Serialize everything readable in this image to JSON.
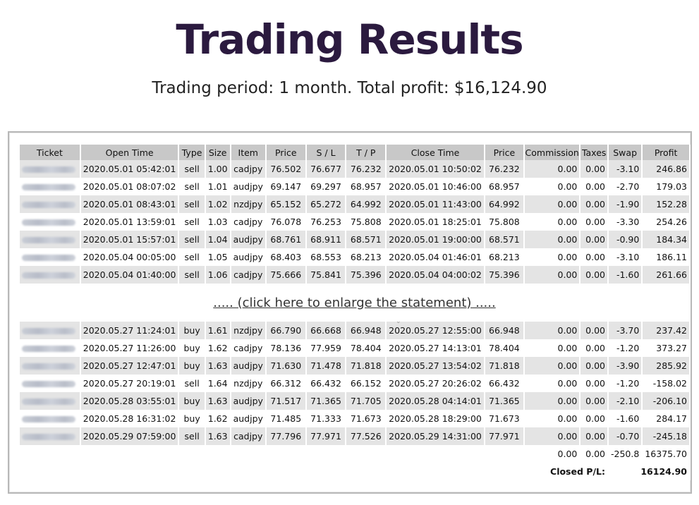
{
  "title": "Trading Results",
  "subtitle": "Trading period: 1 month. Total profit: $16,124.90",
  "statement": {
    "columns": [
      "Ticket",
      "Open Time",
      "Type",
      "Size",
      "Item",
      "Price",
      "S / L",
      "T / P",
      "Close Time",
      "Price",
      "Commission",
      "Taxes",
      "Swap",
      "Profit"
    ],
    "rows_top": [
      [
        "2020.05.01 05:42:01",
        "sell",
        "1.00",
        "cadjpy",
        "76.502",
        "76.677",
        "76.232",
        "2020.05.01 10:50:02",
        "76.232",
        "0.00",
        "0.00",
        "-3.10",
        "246.86"
      ],
      [
        "2020.05.01 08:07:02",
        "sell",
        "1.01",
        "audjpy",
        "69.147",
        "69.297",
        "68.957",
        "2020.05.01 10:46:00",
        "68.957",
        "0.00",
        "0.00",
        "-2.70",
        "179.03"
      ],
      [
        "2020.05.01 08:43:01",
        "sell",
        "1.02",
        "nzdjpy",
        "65.152",
        "65.272",
        "64.992",
        "2020.05.01 11:43:00",
        "64.992",
        "0.00",
        "0.00",
        "-1.90",
        "152.28"
      ],
      [
        "2020.05.01 13:59:01",
        "sell",
        "1.03",
        "cadjpy",
        "76.078",
        "76.253",
        "75.808",
        "2020.05.01 18:25:01",
        "75.808",
        "0.00",
        "0.00",
        "-3.30",
        "254.26"
      ],
      [
        "2020.05.01 15:57:01",
        "sell",
        "1.04",
        "audjpy",
        "68.761",
        "68.911",
        "68.571",
        "2020.05.01 19:00:00",
        "68.571",
        "0.00",
        "0.00",
        "-0.90",
        "184.34"
      ],
      [
        "2020.05.04 00:05:00",
        "sell",
        "1.05",
        "audjpy",
        "68.403",
        "68.553",
        "68.213",
        "2020.05.04 01:46:01",
        "68.213",
        "0.00",
        "0.00",
        "-3.10",
        "186.11"
      ],
      [
        "2020.05.04 01:40:00",
        "sell",
        "1.06",
        "cadjpy",
        "75.666",
        "75.841",
        "75.396",
        "2020.05.04 04:00:02",
        "75.396",
        "0.00",
        "0.00",
        "-1.60",
        "261.66"
      ]
    ],
    "enlarge_link": "..... (click here to enlarge the statement) .....",
    "rows_bottom": [
      [
        "2020.05.27 11:24:01",
        "buy",
        "1.61",
        "nzdjpy",
        "66.790",
        "66.668",
        "66.948",
        "2020.05.27 12:55:00",
        "66.948",
        "0.00",
        "0.00",
        "-3.70",
        "237.42"
      ],
      [
        "2020.05.27 11:26:00",
        "buy",
        "1.62",
        "cadjpy",
        "78.136",
        "77.959",
        "78.404",
        "2020.05.27 14:13:01",
        "78.404",
        "0.00",
        "0.00",
        "-1.20",
        "373.27"
      ],
      [
        "2020.05.27 12:47:01",
        "buy",
        "1.63",
        "audjpy",
        "71.630",
        "71.478",
        "71.818",
        "2020.05.27 13:54:02",
        "71.818",
        "0.00",
        "0.00",
        "-3.90",
        "285.92"
      ],
      [
        "2020.05.27 20:19:01",
        "sell",
        "1.64",
        "nzdjpy",
        "66.312",
        "66.432",
        "66.152",
        "2020.05.27 20:26:02",
        "66.432",
        "0.00",
        "0.00",
        "-1.20",
        "-158.02"
      ],
      [
        "2020.05.28 03:55:01",
        "buy",
        "1.63",
        "audjpy",
        "71.517",
        "71.365",
        "71.705",
        "2020.05.28 04:14:01",
        "71.365",
        "0.00",
        "0.00",
        "-2.10",
        "-206.10"
      ],
      [
        "2020.05.28 16:31:02",
        "buy",
        "1.62",
        "audjpy",
        "71.485",
        "71.333",
        "71.673",
        "2020.05.28 18:29:00",
        "71.673",
        "0.00",
        "0.00",
        "-1.60",
        "284.17"
      ],
      [
        "2020.05.29 07:59:00",
        "sell",
        "1.63",
        "cadjpy",
        "77.796",
        "77.971",
        "77.526",
        "2020.05.29 14:31:00",
        "77.971",
        "0.00",
        "0.00",
        "-0.70",
        "-245.18"
      ]
    ],
    "totals": {
      "commission": "0.00",
      "taxes": "0.00",
      "swap": "-250.8",
      "profit": "16375.70"
    },
    "closed_pl": {
      "label": "Closed P/L:",
      "value": "16124.90"
    }
  },
  "colors": {
    "title": "#2b1a3f",
    "header_bg": "#c8c8c8",
    "row_shade": "#e4e4e4"
  }
}
